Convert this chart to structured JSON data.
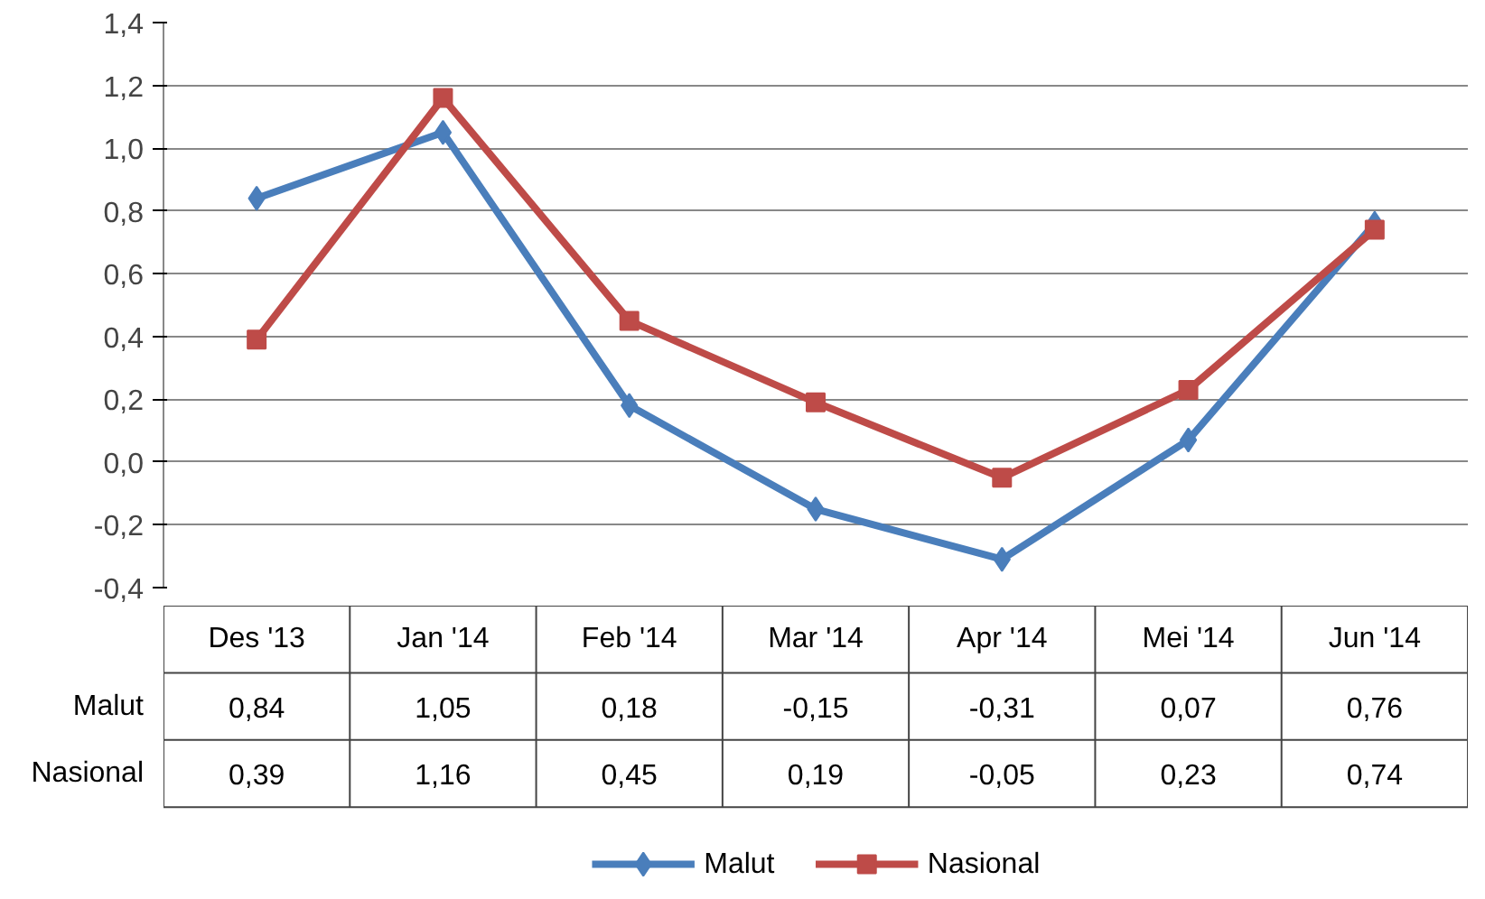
{
  "chart_data": {
    "type": "line",
    "categories": [
      "Des '13",
      "Jan '14",
      "Feb '14",
      "Mar '14",
      "Apr '14",
      "Mei '14",
      "Jun '14"
    ],
    "series": [
      {
        "name": "Malut",
        "color": "#4a7ebb",
        "marker": "diamond",
        "values": [
          0.84,
          1.05,
          0.18,
          -0.15,
          -0.31,
          0.07,
          0.76
        ],
        "value_labels": [
          "0,84",
          "1,05",
          "0,18",
          "-0,15",
          "-0,31",
          "0,07",
          "0,76"
        ]
      },
      {
        "name": "Nasional",
        "color": "#be4b48",
        "marker": "square",
        "values": [
          0.39,
          1.16,
          0.45,
          0.19,
          -0.05,
          0.23,
          0.74
        ],
        "value_labels": [
          "0,39",
          "1,16",
          "0,45",
          "0,19",
          "-0,05",
          "0,23",
          "0,74"
        ]
      }
    ],
    "ylim": [
      -0.4,
      1.4
    ],
    "yticks": [
      {
        "value": -0.4,
        "label": "-0,4"
      },
      {
        "value": -0.2,
        "label": "-0,2"
      },
      {
        "value": 0,
        "label": "0,0"
      },
      {
        "value": 0.2,
        "label": "0,2"
      },
      {
        "value": 0.4,
        "label": "0,4"
      },
      {
        "value": 0.6,
        "label": "0,6"
      },
      {
        "value": 0.8,
        "label": "0,8"
      },
      {
        "value": 1.0,
        "label": "1,0"
      },
      {
        "value": 1.2,
        "label": "1,2"
      },
      {
        "value": 1.4,
        "label": "1,4"
      }
    ],
    "grid": "y",
    "legend": "bottom",
    "line_style": "solid"
  }
}
